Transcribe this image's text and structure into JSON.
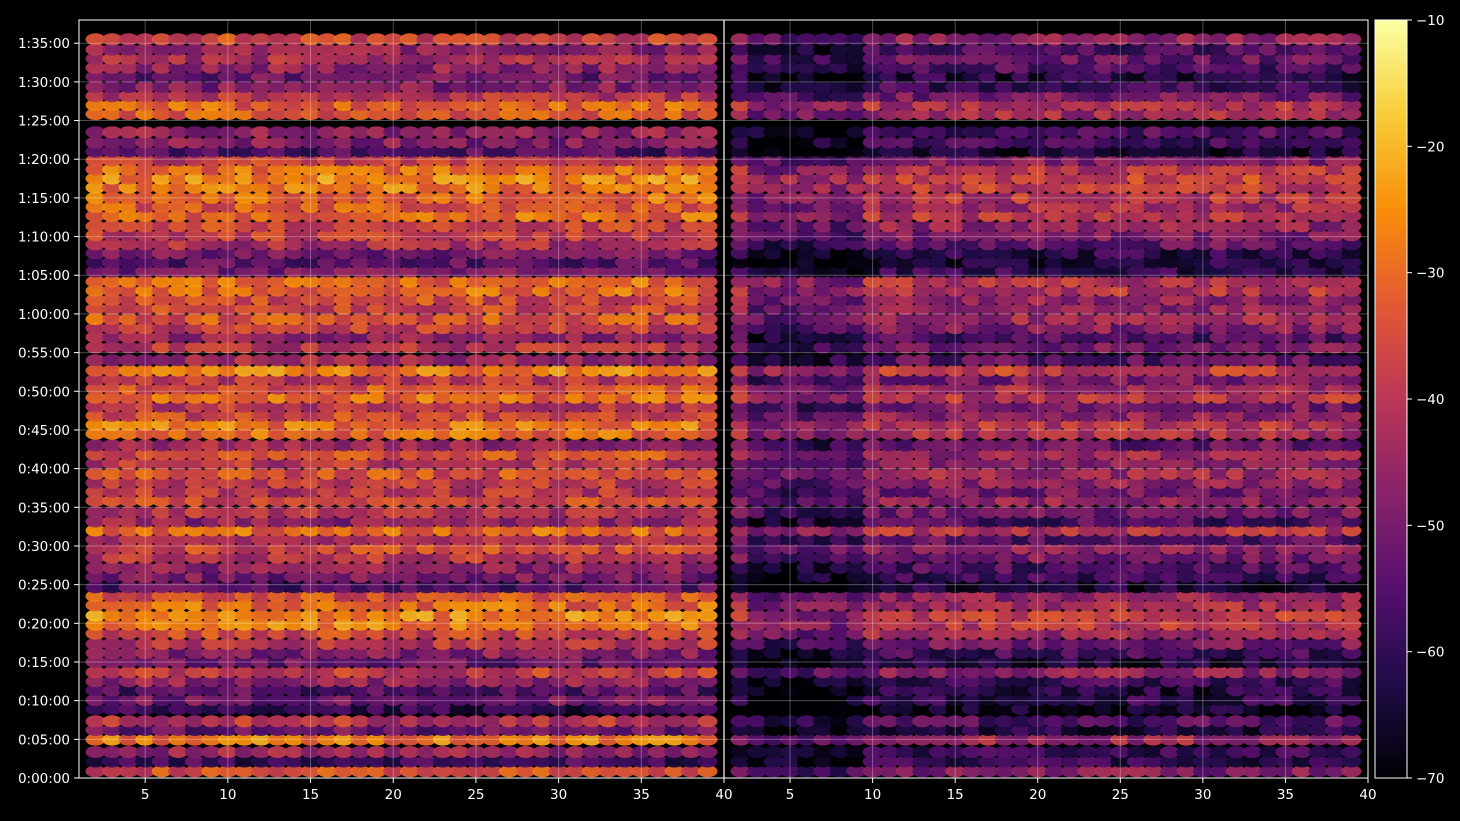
{
  "chart_data": {
    "type": "heatmap",
    "title": "",
    "xlabel": "",
    "ylabel": "",
    "colormap": "inferno",
    "background": "#000000",
    "grid": true,
    "panels": [
      {
        "name": "left",
        "xlim": [
          1,
          40
        ],
        "x_ticks": [
          5,
          10,
          15,
          20,
          25,
          30,
          35,
          40
        ],
        "x_tick_labels": [
          "5",
          "10",
          "15",
          "20",
          "25",
          "30",
          "35",
          "40"
        ]
      },
      {
        "name": "right",
        "xlim": [
          1,
          40
        ],
        "x_ticks": [
          5,
          10,
          15,
          20,
          25,
          30,
          35,
          40
        ],
        "x_tick_labels": [
          "5",
          "10",
          "15",
          "20",
          "25",
          "30",
          "35",
          "40"
        ]
      }
    ],
    "ylim_seconds": [
      0,
      5880
    ],
    "y_ticks": [
      "0:00:00",
      "0:05:00",
      "0:10:00",
      "0:15:00",
      "0:20:00",
      "0:25:00",
      "0:30:00",
      "0:35:00",
      "0:40:00",
      "0:45:00",
      "0:50:00",
      "0:55:00",
      "1:00:00",
      "1:05:00",
      "1:10:00",
      "1:15:00",
      "1:20:00",
      "1:25:00",
      "1:30:00",
      "1:35:00"
    ],
    "colorbar": {
      "range": [
        -70,
        -10
      ],
      "ticks": [
        -10,
        -20,
        -30,
        -40,
        -50,
        -60,
        -70
      ],
      "tick_labels": [
        "−10",
        "−20",
        "−30",
        "−40",
        "−50",
        "−60",
        "−70"
      ]
    },
    "row_times": [
      "0:00:52",
      "0:02:08",
      "0:03:22",
      "0:04:58",
      "0:06:12",
      "0:07:20",
      "0:08:55",
      "0:10:05",
      "0:11:20",
      "0:12:30",
      "0:13:40",
      "0:15:00",
      "0:16:10",
      "0:17:20",
      "0:18:40",
      "0:19:50",
      "0:21:00",
      "0:22:20",
      "0:23:30",
      "0:24:40",
      "0:26:00",
      "0:27:10",
      "0:28:30",
      "0:29:40",
      "0:30:50",
      "0:32:00",
      "0:33:10",
      "0:34:20",
      "0:35:50",
      "0:37:00",
      "0:38:10",
      "0:39:20",
      "0:40:40",
      "0:41:50",
      "0:43:00",
      "0:44:30",
      "0:45:40",
      "0:46:50",
      "0:48:00",
      "0:49:10",
      "0:50:20",
      "0:51:30",
      "0:52:40",
      "0:54:00",
      "0:55:40",
      "0:57:00",
      "0:58:10",
      "0:59:20",
      "1:00:40",
      "1:01:50",
      "1:03:00",
      "1:04:10",
      "1:05:30",
      "1:06:40",
      "1:07:50",
      "1:09:00",
      "1:10:10",
      "1:11:20",
      "1:12:40",
      "1:13:50",
      "1:15:00",
      "1:16:20",
      "1:17:30",
      "1:18:40",
      "1:19:50",
      "1:21:00",
      "1:22:10",
      "1:23:30",
      "1:25:50",
      "1:27:00",
      "1:28:10",
      "1:29:20",
      "1:30:40",
      "1:31:50",
      "1:33:00",
      "1:34:10",
      "1:35:30"
    ],
    "row_levels_left": [
      -35,
      -58,
      -45,
      -28,
      -52,
      -40,
      -60,
      -50,
      -55,
      -46,
      -38,
      -52,
      -48,
      -40,
      -36,
      -28,
      -26,
      -30,
      -34,
      -55,
      -50,
      -46,
      -40,
      -36,
      -42,
      -30,
      -46,
      -40,
      -36,
      -40,
      -38,
      -34,
      -40,
      -34,
      -44,
      -30,
      -28,
      -36,
      -40,
      -30,
      -33,
      -40,
      -27,
      -44,
      -40,
      -46,
      -38,
      -33,
      -36,
      -35,
      -30,
      -30,
      -50,
      -54,
      -50,
      -42,
      -38,
      -36,
      -30,
      -33,
      -30,
      -28,
      -26,
      -30,
      -38,
      -56,
      -48,
      -46,
      -33,
      -31,
      -40,
      -48,
      -52,
      -46,
      -42,
      -46,
      -36
    ],
    "row_levels_right": [
      -48,
      -60,
      -60,
      -44,
      -62,
      -55,
      -66,
      -60,
      -62,
      -58,
      -46,
      -62,
      -58,
      -50,
      -44,
      -40,
      -38,
      -42,
      -46,
      -64,
      -58,
      -56,
      -50,
      -46,
      -54,
      -40,
      -56,
      -50,
      -46,
      -50,
      -46,
      -44,
      -48,
      -44,
      -52,
      -42,
      -40,
      -46,
      -50,
      -40,
      -44,
      -50,
      -38,
      -54,
      -50,
      -56,
      -48,
      -44,
      -46,
      -45,
      -40,
      -40,
      -60,
      -62,
      -60,
      -52,
      -48,
      -46,
      -40,
      -43,
      -40,
      -38,
      -36,
      -40,
      -48,
      -64,
      -58,
      -56,
      -43,
      -41,
      -50,
      -58,
      -62,
      -56,
      -52,
      -56,
      -46
    ]
  }
}
